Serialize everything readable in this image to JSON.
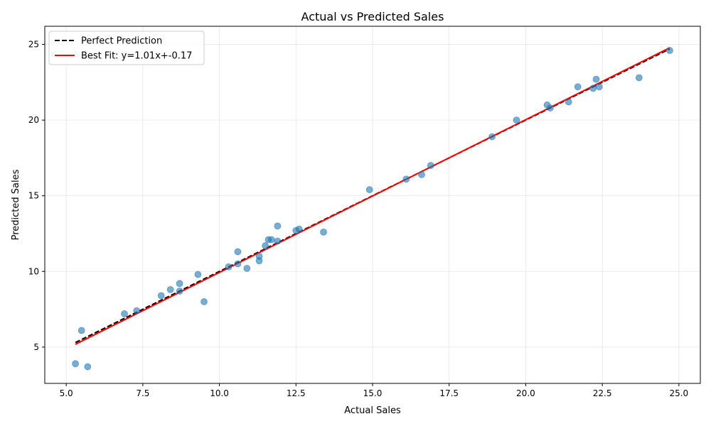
{
  "chart_data": {
    "type": "scatter",
    "title": "Actual vs Predicted Sales",
    "xlabel": "Actual Sales",
    "ylabel": "Predicted Sales",
    "xlim": [
      4.3,
      25.7
    ],
    "ylim": [
      2.6,
      26.2
    ],
    "xticks": [
      5.0,
      7.5,
      10.0,
      12.5,
      15.0,
      17.5,
      20.0,
      22.5,
      25.0
    ],
    "xtick_labels": [
      "5.0",
      "7.5",
      "10.0",
      "12.5",
      "15.0",
      "17.5",
      "20.0",
      "22.5",
      "25.0"
    ],
    "yticks": [
      5,
      10,
      15,
      20,
      25
    ],
    "ytick_labels": [
      "5",
      "10",
      "15",
      "20",
      "25"
    ],
    "grid": true,
    "legend_position": "top-left",
    "colors": {
      "points": "#1f77b4",
      "perfect": "#000000",
      "fit": "#ff0000"
    },
    "legend": [
      {
        "label": "Perfect Prediction",
        "style": "dashed",
        "color": "#000000"
      },
      {
        "label": "Best Fit: y=1.01x+-0.17",
        "style": "solid",
        "color": "#ff0000"
      }
    ],
    "perfect_line": {
      "x": [
        5.3,
        24.7
      ],
      "y": [
        5.3,
        24.7
      ]
    },
    "fit_line": {
      "slope": 1.01,
      "intercept": -0.17,
      "x_range": [
        5.3,
        24.7
      ]
    },
    "points": [
      {
        "x": 5.3,
        "y": 3.9
      },
      {
        "x": 5.5,
        "y": 6.1
      },
      {
        "x": 5.7,
        "y": 3.7
      },
      {
        "x": 6.9,
        "y": 7.2
      },
      {
        "x": 7.3,
        "y": 7.4
      },
      {
        "x": 8.1,
        "y": 8.4
      },
      {
        "x": 8.4,
        "y": 8.8
      },
      {
        "x": 8.7,
        "y": 9.2
      },
      {
        "x": 8.7,
        "y": 8.7
      },
      {
        "x": 9.3,
        "y": 9.8
      },
      {
        "x": 9.5,
        "y": 8.0
      },
      {
        "x": 10.3,
        "y": 10.3
      },
      {
        "x": 10.6,
        "y": 11.3
      },
      {
        "x": 10.6,
        "y": 10.5
      },
      {
        "x": 10.9,
        "y": 10.2
      },
      {
        "x": 11.3,
        "y": 11.0
      },
      {
        "x": 11.3,
        "y": 10.7
      },
      {
        "x": 11.5,
        "y": 11.7
      },
      {
        "x": 11.6,
        "y": 12.1
      },
      {
        "x": 11.7,
        "y": 12.1
      },
      {
        "x": 11.9,
        "y": 13.0
      },
      {
        "x": 11.9,
        "y": 12.0
      },
      {
        "x": 12.5,
        "y": 12.7
      },
      {
        "x": 12.6,
        "y": 12.8
      },
      {
        "x": 13.4,
        "y": 12.6
      },
      {
        "x": 14.9,
        "y": 15.4
      },
      {
        "x": 16.1,
        "y": 16.1
      },
      {
        "x": 16.6,
        "y": 16.4
      },
      {
        "x": 16.9,
        "y": 17.0
      },
      {
        "x": 18.9,
        "y": 18.9
      },
      {
        "x": 19.7,
        "y": 20.0
      },
      {
        "x": 20.7,
        "y": 21.0
      },
      {
        "x": 20.8,
        "y": 20.8
      },
      {
        "x": 21.4,
        "y": 21.2
      },
      {
        "x": 21.7,
        "y": 22.2
      },
      {
        "x": 22.2,
        "y": 22.1
      },
      {
        "x": 22.3,
        "y": 22.7
      },
      {
        "x": 22.4,
        "y": 22.2
      },
      {
        "x": 23.7,
        "y": 22.8
      },
      {
        "x": 24.7,
        "y": 24.6
      }
    ]
  }
}
